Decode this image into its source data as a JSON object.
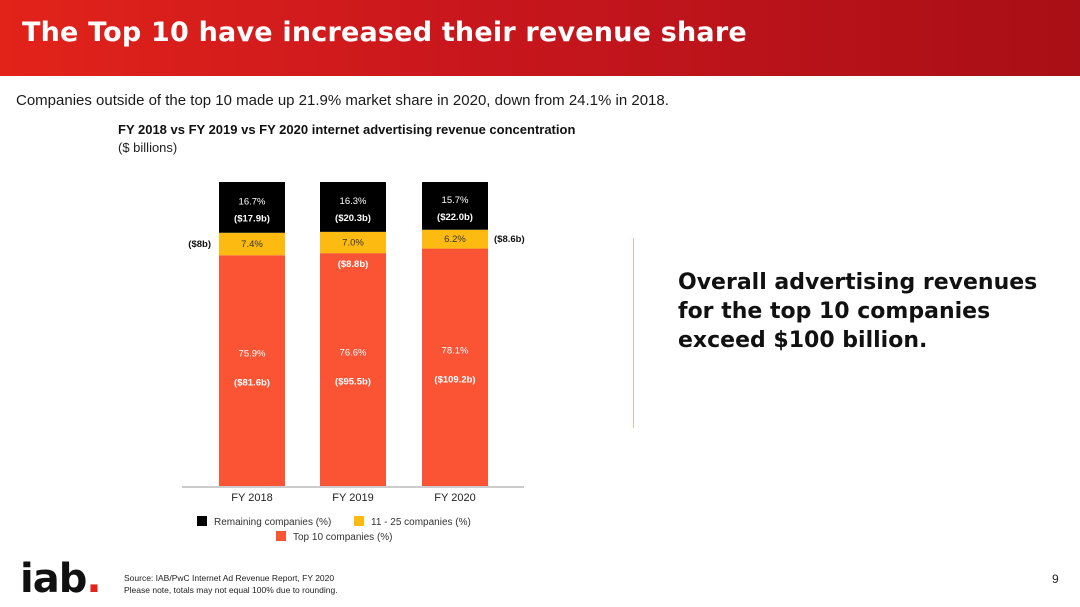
{
  "header": {
    "title": "The Top 10 have increased their revenue share"
  },
  "subtitle": "Companies outside of the top 10 made up 21.9% market share in 2020, down from 24.1% in 2018.",
  "callout": "Overall advertising revenues for the top 10 companies exceed $100 billion.",
  "footer": {
    "source_line1": "Source: IAB/PwC Internet Ad Revenue Report, FY 2020",
    "source_line2": "Please note, totals may not equal 100% due to rounding.",
    "page_number": "9",
    "logo_text": "iab",
    "logo_dot": "."
  },
  "chart_data": {
    "type": "bar",
    "stacked": true,
    "title": "FY 2018 vs FY 2019 vs FY 2020 internet advertising revenue concentration",
    "unit": "($ billions)",
    "categories": [
      "FY 2018",
      "FY 2019",
      "FY 2020"
    ],
    "series": [
      {
        "name": "Top 10 companies (%)",
        "color": "#fb5435",
        "values": [
          75.9,
          76.6,
          78.1
        ],
        "labels": [
          "75.9%",
          "76.6%",
          "78.1%"
        ],
        "amounts": [
          "($81.6b)",
          "($95.5b)",
          "($109.2b)"
        ]
      },
      {
        "name": "11 - 25 companies (%)",
        "color": "#fdbb12",
        "values": [
          7.4,
          7.0,
          6.2
        ],
        "labels": [
          "7.4%",
          "7.0%",
          "6.2%"
        ],
        "amounts": [
          "($8b)",
          "($8.8b)",
          "($8.6b)"
        ]
      },
      {
        "name": "Remaining companies (%)",
        "color": "#000000",
        "values": [
          16.7,
          16.3,
          15.7
        ],
        "labels": [
          "16.7%",
          "16.3%",
          "15.7%"
        ],
        "amounts": [
          "($17.9b)",
          "($20.3b)",
          "($22.0b)"
        ]
      }
    ],
    "ylim": [
      0,
      100
    ],
    "grid": false,
    "legend": "bottom"
  }
}
